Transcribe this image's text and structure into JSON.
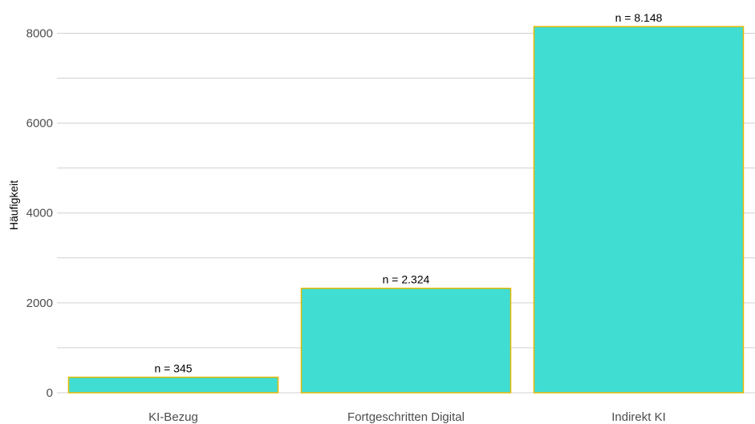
{
  "chart_data": {
    "type": "bar",
    "categories": [
      "KI-Bezug",
      "Fortgeschritten Digital",
      "Indirekt KI"
    ],
    "values": [
      345,
      2324,
      8148
    ],
    "data_labels": [
      "n = 345",
      "n = 2.324",
      "n = 8.148"
    ],
    "xlabel": "",
    "ylabel": "Häufigkeit",
    "ylim": [
      0,
      8450
    ],
    "yticks": [
      0,
      2000,
      4000,
      6000,
      8000
    ],
    "yticks_minor": [
      1000,
      3000,
      5000,
      7000
    ],
    "grid": true,
    "legend": "none",
    "colors": {
      "bar_fill": "#40DDD3",
      "bar_border": "#E8B800",
      "grid": "#D0D0D0",
      "tick_text": "#4D4D4D",
      "label_text": "#000000"
    }
  }
}
